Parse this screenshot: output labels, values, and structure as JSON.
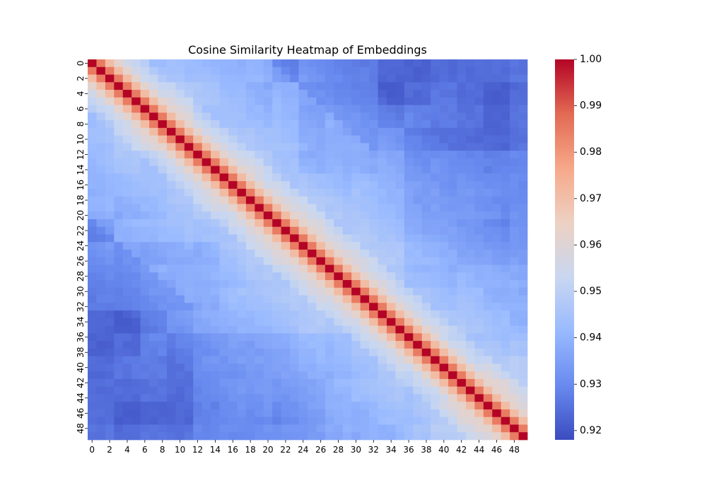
{
  "chart_data": {
    "type": "heatmap",
    "title": "Cosine Similarity Heatmap of Embeddings",
    "xlabel": "",
    "ylabel": "",
    "n": 50,
    "x_tick_labels": [
      "0",
      "2",
      "4",
      "6",
      "8",
      "10",
      "12",
      "14",
      "16",
      "18",
      "20",
      "22",
      "24",
      "26",
      "28",
      "30",
      "32",
      "34",
      "36",
      "38",
      "40",
      "42",
      "44",
      "46",
      "48"
    ],
    "y_tick_labels": [
      "0",
      "2",
      "4",
      "6",
      "8",
      "10",
      "12",
      "14",
      "16",
      "18",
      "20",
      "22",
      "24",
      "26",
      "28",
      "30",
      "32",
      "34",
      "36",
      "38",
      "40",
      "42",
      "44",
      "46",
      "48"
    ],
    "colorbar": {
      "vmin": 0.918,
      "vmax": 1.0,
      "tick_labels": [
        "0.92",
        "0.93",
        "0.94",
        "0.95",
        "0.96",
        "0.97",
        "0.98",
        "0.99",
        "1.00"
      ],
      "colormap": "coolwarm",
      "colors": [
        "#3b4cc0",
        "#688aef",
        "#99baff",
        "#c9d7f0",
        "#edd1c2",
        "#f7a889",
        "#e26a53",
        "#b40426"
      ]
    },
    "value_model": {
      "diagonal": 1.0,
      "offset_1": 0.985,
      "offset_2": 0.971,
      "offset_3": 0.962,
      "far_lower_range": [
        0.92,
        0.945
      ],
      "far_upper_range": [
        0.925,
        0.95
      ],
      "grid": false
    }
  }
}
